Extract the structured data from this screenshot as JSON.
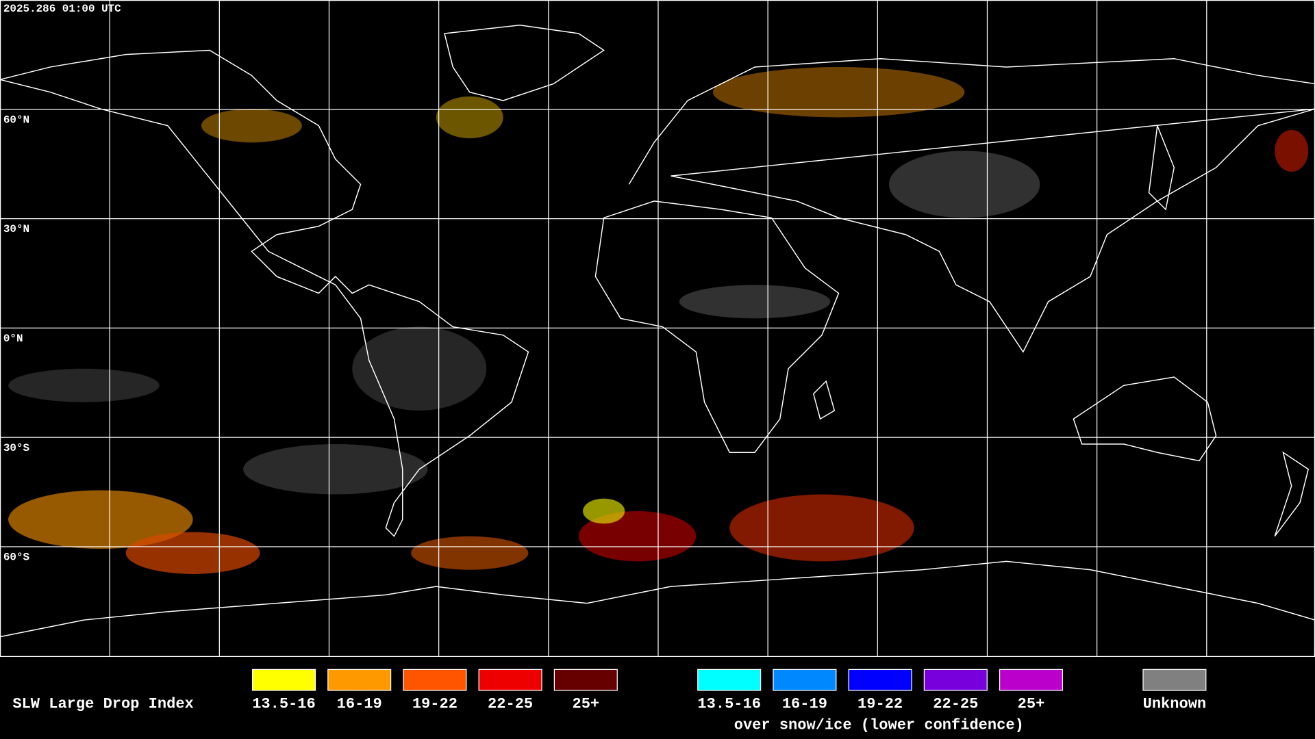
{
  "timestamp": "2025.286 01:00 UTC",
  "lat_labels": [
    "60°N",
    "30°N",
    "0°N",
    "30°S",
    "60°S"
  ],
  "legend": {
    "title": "SLW Large Drop Index",
    "liquid": [
      {
        "label": "13.5-16",
        "color": "#ffff00"
      },
      {
        "label": "16-19",
        "color": "#ff9900"
      },
      {
        "label": "19-22",
        "color": "#ff5500"
      },
      {
        "label": "22-25",
        "color": "#ee0000"
      },
      {
        "label": "25+",
        "color": "#660000"
      }
    ],
    "snow_ice": [
      {
        "label": "13.5-16",
        "color": "#00ffff"
      },
      {
        "label": "16-19",
        "color": "#0088ff"
      },
      {
        "label": "19-22",
        "color": "#0000ff"
      },
      {
        "label": "22-25",
        "color": "#7700dd"
      },
      {
        "label": "25+",
        "color": "#bb00cc"
      }
    ],
    "snow_ice_caption": "over snow/ice (lower confidence)",
    "unknown": {
      "label": "Unknown",
      "color": "#808080"
    }
  }
}
